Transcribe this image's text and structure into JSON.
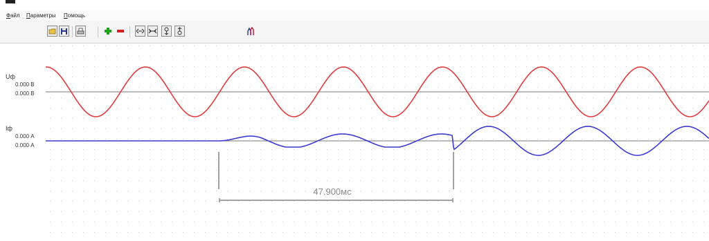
{
  "menu": {
    "items": [
      {
        "accel": "Ф",
        "rest": "айл"
      },
      {
        "accel": "П",
        "rest": "араметры"
      },
      {
        "accel": "П",
        "rest": "омощь"
      }
    ]
  },
  "toolbar": {
    "buttons": [
      "open-icon",
      "save-icon",
      "print-icon",
      "add-icon",
      "remove-icon",
      "zoom-out-time-icon",
      "zoom-in-time-icon",
      "zoom-in-amplitude-icon",
      "zoom-out-amplitude-icon",
      "cursor-icon"
    ]
  },
  "channels": [
    {
      "name": "Uф",
      "value1": "0.000 В",
      "value2": "0.000 В",
      "color": "#e23b3b"
    },
    {
      "name": "Iф",
      "value1": "0.000 А",
      "value2": "0.000 А",
      "color": "#3a3ad2"
    }
  ],
  "measurement": {
    "label": "47.900мс"
  },
  "colors": {
    "grid_dot": "#c9c9c9",
    "baseline": "#777777"
  }
}
